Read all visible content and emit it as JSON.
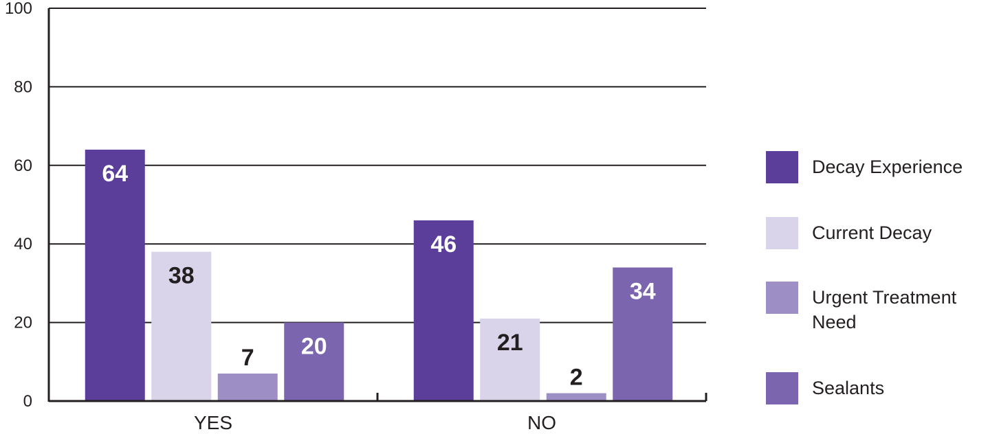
{
  "chart_data": {
    "type": "bar",
    "categories": [
      "YES",
      "NO"
    ],
    "series": [
      {
        "name": "Decay Experience",
        "values": [
          64,
          46
        ],
        "color": "#5a3e99",
        "label_color": "#ffffff"
      },
      {
        "name": "Current Decay",
        "values": [
          38,
          21
        ],
        "color": "#d9d4ea",
        "label_color": "#231f20"
      },
      {
        "name": "Urgent Treatment Need",
        "values": [
          7,
          2
        ],
        "color": "#9d8fc6",
        "label_color": "#231f20"
      },
      {
        "name": "Sealants",
        "values": [
          20,
          34
        ],
        "color": "#7b65ae",
        "label_color": "#ffffff"
      }
    ],
    "ylim": [
      0,
      100
    ],
    "yticks": [
      "0",
      "20",
      "40",
      "60",
      "80",
      "100"
    ],
    "grid": true,
    "legend_position": "right"
  }
}
